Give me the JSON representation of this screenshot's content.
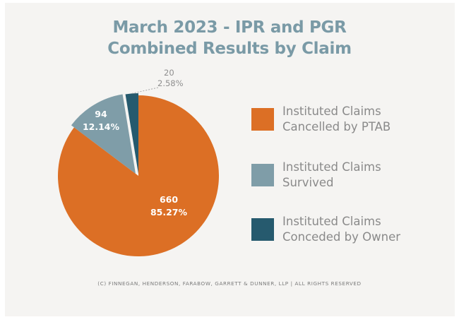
{
  "chart_data": {
    "type": "pie",
    "title_lines": [
      "March 2023 - IPR and PGR",
      "Combined Results by Claim"
    ],
    "slices": [
      {
        "name": "Instituted Claims Cancelled by PTAB",
        "legend_lines": [
          "Instituted Claims",
          "Cancelled by PTAB"
        ],
        "value": 660,
        "percent": "85.27%",
        "color": "#dc6f25"
      },
      {
        "name": "Instituted Claims Survived",
        "legend_lines": [
          "Instituted Claims",
          "Survived"
        ],
        "value": 94,
        "percent": "12.14%",
        "color": "#7f9da8"
      },
      {
        "name": "Instituted Claims Conceded by Owner",
        "legend_lines": [
          "Instituted Claims",
          "Conceded by Owner"
        ],
        "value": 20,
        "percent": "2.58%",
        "color": "#265a6e"
      }
    ],
    "legend_position": "right"
  },
  "footer": "(C) FINNEGAN, HENDERSON, FARABOW, GARRETT & DUNNER, LLP | ALL RIGHTS RESERVED"
}
